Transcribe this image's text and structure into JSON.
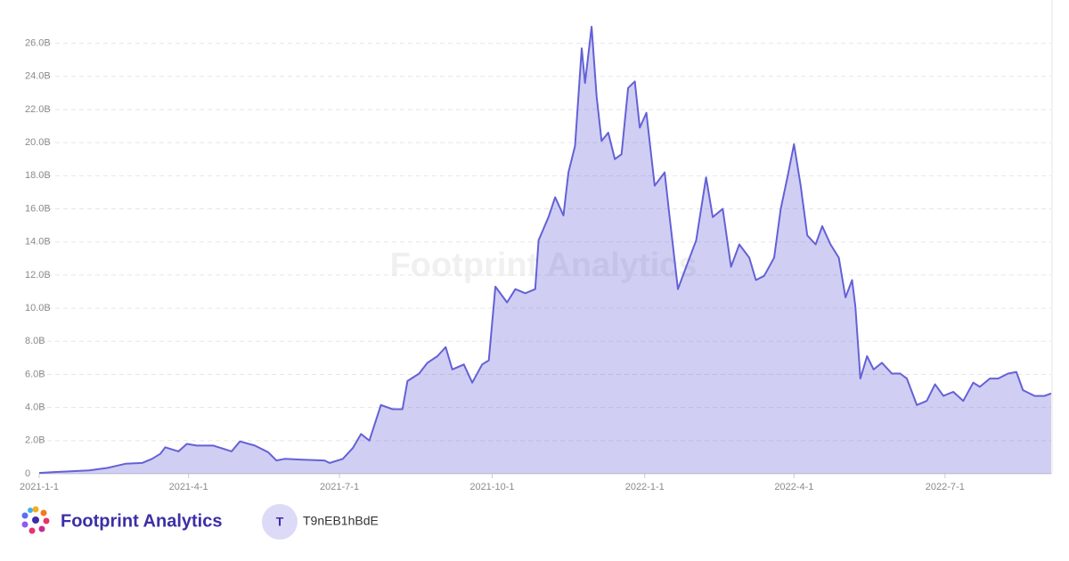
{
  "chart_data": {
    "type": "area",
    "watermark": "Footprint Analytics",
    "x": [
      "2021-1-1",
      "2021-1-10",
      "2021-1-20",
      "2021-1-31",
      "2021-2-11",
      "2021-2-22",
      "2021-3-4",
      "2021-3-10",
      "2021-3-15",
      "2021-3-18",
      "2021-3-26",
      "2021-3-31",
      "2021-4-6",
      "2021-4-16",
      "2021-4-27",
      "2021-5-2",
      "2021-5-11",
      "2021-5-19",
      "2021-5-24",
      "2021-5-29",
      "2021-6-9",
      "2021-6-22",
      "2021-6-25",
      "2021-7-3",
      "2021-7-9",
      "2021-7-14",
      "2021-7-19",
      "2021-7-26",
      "2021-8-2",
      "2021-8-8",
      "2021-8-11",
      "2021-8-18",
      "2021-8-23",
      "2021-8-29",
      "2021-9-3",
      "2021-9-7",
      "2021-9-14",
      "2021-9-19",
      "2021-9-25",
      "2021-9-29",
      "2021-10-3",
      "2021-10-10",
      "2021-10-15",
      "2021-10-21",
      "2021-10-27",
      "2021-10-29",
      "2021-11-4",
      "2021-11-8",
      "2021-11-13",
      "2021-11-16",
      "2021-11-20",
      "2021-11-24",
      "2021-11-26",
      "2021-11-30",
      "2021-12-3",
      "2021-12-6",
      "2021-12-10",
      "2021-12-14",
      "2021-12-18",
      "2021-12-22",
      "2021-12-26",
      "2021-12-29",
      "2022-1-2",
      "2022-1-7",
      "2022-1-13",
      "2022-1-16",
      "2022-1-21",
      "2022-1-26",
      "2022-2-1",
      "2022-2-7",
      "2022-2-11",
      "2022-2-17",
      "2022-2-22",
      "2022-2-27",
      "2022-3-5",
      "2022-3-9",
      "2022-3-14",
      "2022-3-20",
      "2022-3-24",
      "2022-3-28",
      "2022-4-1",
      "2022-4-5",
      "2022-4-9",
      "2022-4-14",
      "2022-4-18",
      "2022-4-23",
      "2022-4-28",
      "2022-5-2",
      "2022-5-6",
      "2022-5-8",
      "2022-5-11",
      "2022-5-15",
      "2022-5-19",
      "2022-5-24",
      "2022-5-30",
      "2022-6-4",
      "2022-6-8",
      "2022-6-14",
      "2022-6-20",
      "2022-6-25",
      "2022-6-30",
      "2022-7-6",
      "2022-7-12",
      "2022-7-18",
      "2022-7-22",
      "2022-7-28",
      "2022-8-2",
      "2022-8-8",
      "2022-8-13",
      "2022-8-17",
      "2022-8-24",
      "2022-8-30",
      "2022-9-3"
    ],
    "values": [
      50000000.0,
      100000000.0,
      150000000.0,
      200000000.0,
      350000000.0,
      600000000.0,
      650000000.0,
      900000000.0,
      1200000000.0,
      1600000000.0,
      1350000000.0,
      1800000000.0,
      1700000000.0,
      1700000000.0,
      1350000000.0,
      1950000000.0,
      1700000000.0,
      1300000000.0,
      800000000.0,
      900000000.0,
      850000000.0,
      800000000.0,
      650000000.0,
      900000000.0,
      1550000000.0,
      2400000000.0,
      2000000000.0,
      4150000000.0,
      3900000000.0,
      3900000000.0,
      5600000000.0,
      6050000000.0,
      6700000000.0,
      7100000000.0,
      7650000000.0,
      6300000000.0,
      6600000000.0,
      5500000000.0,
      6600000000.0,
      6850000000.0,
      11300000000.0,
      10350000000.0,
      11150000000.0,
      10900000000.0,
      11150000000.0,
      14100000000.0,
      15500000000.0,
      16700000000.0,
      15600000000.0,
      18200000000.0,
      19800000000.0,
      25700000000.0,
      23600000000.0,
      27000000000.0,
      22800000000.0,
      20100000000.0,
      20600000000.0,
      19000000000.0,
      19300000000.0,
      23300000000.0,
      23700000000.0,
      20900000000.0,
      21800000000.0,
      17400000000.0,
      18200000000.0,
      15500000000.0,
      11150000000.0,
      12500000000.0,
      14100000000.0,
      17900000000.0,
      15500000000.0,
      16000000000.0,
      12500000000.0,
      13850000000.0,
      13050000000.0,
      11700000000.0,
      11950000000.0,
      13050000000.0,
      16000000000.0,
      17900000000.0,
      19900000000.0,
      17400000000.0,
      14400000000.0,
      13850000000.0,
      14950000000.0,
      13850000000.0,
      13050000000.0,
      10650000000.0,
      11700000000.0,
      10100000000.0,
      5750000000.0,
      7100000000.0,
      6300000000.0,
      6700000000.0,
      6050000000.0,
      6050000000.0,
      5750000000.0,
      4150000000.0,
      4400000000.0,
      5400000000.0,
      4700000000.0,
      4950000000.0,
      4400000000.0,
      5500000000.0,
      5250000000.0,
      5750000000.0,
      5750000000.0,
      6050000000.0,
      6150000000.0,
      5050000000.0,
      4700000000.0,
      4700000000.0,
      4850000000.0
    ],
    "color": "#6461d6",
    "xlim": [
      "2021-1-1",
      "2022-9-3"
    ],
    "xticks": [
      "2021-1-1",
      "2021-4-1",
      "2021-7-1",
      "2021-10-1",
      "2022-1-1",
      "2022-4-1",
      "2022-7-1"
    ],
    "ylim": [
      0,
      27000000000
    ],
    "yticks": [
      0,
      {
        "value": 2000000000,
        "label": "2.0B"
      },
      {
        "value": 4000000000,
        "label": "4.0B"
      },
      {
        "value": 6000000000,
        "label": "6.0B"
      },
      {
        "value": 8000000000,
        "label": "8.0B"
      },
      {
        "value": 10000000000,
        "label": "10.0B"
      },
      {
        "value": 12000000000,
        "label": "12.0B"
      },
      {
        "value": 14000000000,
        "label": "14.0B"
      },
      {
        "value": 16000000000,
        "label": "16.0B"
      },
      {
        "value": 18000000000,
        "label": "18.0B"
      },
      {
        "value": 20000000000,
        "label": "20.0B"
      },
      {
        "value": 22000000000,
        "label": "22.0B"
      },
      {
        "value": 24000000000,
        "label": "24.0B"
      },
      {
        "value": 26000000000,
        "label": "26.0B"
      }
    ],
    "grid": true
  },
  "footer": {
    "brand": "Footprint Analytics",
    "avatar": "T",
    "user": "T9nEB1hBdE"
  }
}
